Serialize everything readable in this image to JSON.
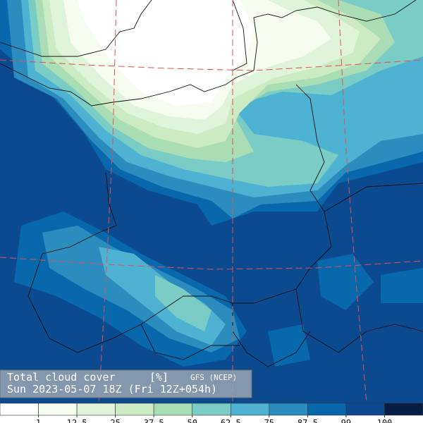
{
  "title": "Total cloud cover",
  "unit": "[%]",
  "source": "GFS (NCEP)",
  "valid": "Sun 2023-05-07 18Z (Fri 12Z+054h)",
  "legend": {
    "colors": [
      "#ffffff",
      "#f7fcf0",
      "#e0f3db",
      "#ccebc5",
      "#a8ddb5",
      "#7bccc4",
      "#4eb3d3",
      "#2b8cbe",
      "#0868ac",
      "#0c4a8f",
      "#081d45"
    ],
    "labels": [
      1,
      12.5,
      25,
      37.5,
      50,
      62.5,
      75,
      87.5,
      99,
      100
    ]
  }
}
